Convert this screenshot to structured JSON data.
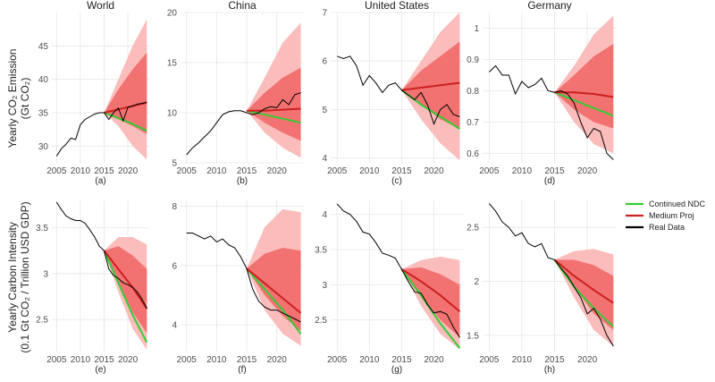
{
  "figure": {
    "row_labels": [
      {
        "line1": "Yearly CO₂ Emission",
        "line2": "(Gt CO₂)"
      },
      {
        "line1": "Yearly Carbon Intensity",
        "line2": "(0.1 Gt CO₂ / Trillion USD GDP)"
      }
    ],
    "legend": [
      {
        "label": "Continued NDC",
        "color": "#33cc33"
      },
      {
        "label": "Medium Proj",
        "color": "#cc1f1f"
      },
      {
        "label": "Real Data",
        "color": "#000000"
      }
    ],
    "colors": {
      "band_outer": "#fbbcbc",
      "band_inner": "#f27272",
      "grid": "#e6e6e6"
    }
  },
  "chart_data": [
    {
      "type": "line",
      "title": "World",
      "panel_label": "(a)",
      "xlim": [
        2004,
        2024.5
      ],
      "ylim": [
        27.5,
        50
      ],
      "x_ticks": [
        2005,
        2010,
        2015,
        2020
      ],
      "y_ticks": [
        30,
        35,
        40,
        45
      ],
      "real_x": [
        2005,
        2006,
        2007,
        2008,
        2009,
        2010,
        2011,
        2012,
        2013,
        2014,
        2015,
        2016,
        2017,
        2018,
        2019,
        2020,
        2021,
        2022,
        2023,
        2024
      ],
      "real_y": [
        28.5,
        29.6,
        30.3,
        31.2,
        31.0,
        33.2,
        34.0,
        34.4,
        34.8,
        35.0,
        35.0,
        34.0,
        35.0,
        35.7,
        33.8,
        35.8,
        36.0,
        36.3,
        36.4,
        36.6
      ],
      "proj_x": [
        2015,
        2018,
        2021,
        2024
      ],
      "medium_y": [
        35.0,
        35.5,
        36.0,
        36.5
      ],
      "ndc_y": [
        35.0,
        34.2,
        33.3,
        32.3
      ],
      "outer_hi": [
        35.0,
        40.0,
        45.0,
        49.0
      ],
      "outer_lo": [
        35.0,
        33.0,
        30.0,
        28.0
      ],
      "inner_hi": [
        35.0,
        38.5,
        41.5,
        44.0
      ],
      "inner_lo": [
        35.0,
        34.0,
        33.0,
        31.8
      ]
    },
    {
      "type": "line",
      "title": "China",
      "panel_label": "(b)",
      "xlim": [
        2004,
        2024.5
      ],
      "ylim": [
        5,
        20
      ],
      "x_ticks": [
        2005,
        2010,
        2015,
        2020
      ],
      "y_ticks": [
        5,
        10,
        15,
        20
      ],
      "real_x": [
        2005,
        2006,
        2007,
        2008,
        2009,
        2010,
        2011,
        2012,
        2013,
        2014,
        2015,
        2016,
        2017,
        2018,
        2019,
        2020,
        2021,
        2022,
        2023,
        2024
      ],
      "real_y": [
        5.8,
        6.5,
        7.0,
        7.6,
        8.2,
        9.0,
        9.8,
        10.1,
        10.2,
        10.2,
        10.0,
        9.8,
        10.0,
        10.4,
        10.6,
        10.5,
        11.3,
        10.8,
        11.8,
        12.0
      ],
      "proj_x": [
        2015,
        2018,
        2021,
        2024
      ],
      "medium_y": [
        10.2,
        10.2,
        10.3,
        10.4
      ],
      "ndc_y": [
        10.2,
        9.8,
        9.4,
        9.0
      ],
      "outer_hi": [
        10.2,
        13.5,
        17.0,
        19.0
      ],
      "outer_lo": [
        10.2,
        8.0,
        6.5,
        5.5
      ],
      "inner_hi": [
        10.2,
        12.0,
        13.5,
        14.5
      ],
      "inner_lo": [
        10.2,
        9.0,
        8.0,
        7.2
      ]
    },
    {
      "type": "line",
      "title": "United States",
      "panel_label": "(c)",
      "xlim": [
        2004,
        2024.5
      ],
      "ylim": [
        3.9,
        7
      ],
      "x_ticks": [
        2005,
        2010,
        2015,
        2020
      ],
      "y_ticks": [
        4,
        5,
        6,
        7
      ],
      "real_x": [
        2005,
        2006,
        2007,
        2008,
        2009,
        2010,
        2011,
        2012,
        2013,
        2014,
        2015,
        2016,
        2017,
        2018,
        2019,
        2020,
        2021,
        2022,
        2023,
        2024
      ],
      "real_y": [
        6.1,
        6.05,
        6.1,
        5.9,
        5.5,
        5.7,
        5.55,
        5.35,
        5.5,
        5.55,
        5.4,
        5.3,
        5.2,
        5.35,
        5.1,
        4.7,
        5.0,
        5.1,
        4.9,
        4.85
      ],
      "proj_x": [
        2015,
        2018,
        2021,
        2024
      ],
      "medium_y": [
        5.4,
        5.45,
        5.5,
        5.55
      ],
      "ndc_y": [
        5.4,
        5.1,
        4.85,
        4.6
      ],
      "outer_hi": [
        5.4,
        6.0,
        6.6,
        7.0
      ],
      "outer_lo": [
        5.4,
        4.8,
        4.3,
        3.95
      ],
      "inner_hi": [
        5.4,
        5.8,
        6.1,
        6.4
      ],
      "inner_lo": [
        5.4,
        5.1,
        4.8,
        4.6
      ]
    },
    {
      "type": "line",
      "title": "Germany",
      "panel_label": "(d)",
      "xlim": [
        2004,
        2024.5
      ],
      "ylim": [
        0.57,
        1.05
      ],
      "x_ticks": [
        2005,
        2010,
        2015,
        2020
      ],
      "y_ticks": [
        0.6,
        0.7,
        0.8,
        0.9,
        1.0
      ],
      "real_x": [
        2005,
        2006,
        2007,
        2008,
        2009,
        2010,
        2011,
        2012,
        2013,
        2014,
        2015,
        2016,
        2017,
        2018,
        2019,
        2020,
        2021,
        2022,
        2023,
        2024
      ],
      "real_y": [
        0.86,
        0.88,
        0.85,
        0.85,
        0.79,
        0.83,
        0.81,
        0.82,
        0.84,
        0.8,
        0.795,
        0.8,
        0.79,
        0.76,
        0.7,
        0.65,
        0.68,
        0.67,
        0.6,
        0.58
      ],
      "proj_x": [
        2015,
        2018,
        2021,
        2024
      ],
      "medium_y": [
        0.795,
        0.795,
        0.79,
        0.78
      ],
      "ndc_y": [
        0.795,
        0.77,
        0.745,
        0.72
      ],
      "outer_hi": [
        0.795,
        0.88,
        0.98,
        1.04
      ],
      "outer_lo": [
        0.795,
        0.7,
        0.63,
        0.6
      ],
      "inner_hi": [
        0.795,
        0.85,
        0.91,
        0.95
      ],
      "inner_lo": [
        0.795,
        0.74,
        0.7,
        0.68
      ]
    },
    {
      "type": "line",
      "title": "",
      "panel_label": "(e)",
      "xlim": [
        2004,
        2024.5
      ],
      "ylim": [
        2.15,
        3.8
      ],
      "x_ticks": [
        2005,
        2010,
        2015,
        2020
      ],
      "y_ticks": [
        2.5,
        3.0,
        3.5
      ],
      "real_x": [
        2005,
        2006,
        2007,
        2008,
        2009,
        2010,
        2011,
        2012,
        2013,
        2014,
        2015,
        2016,
        2017,
        2018,
        2019,
        2020,
        2021,
        2022,
        2023,
        2024
      ],
      "real_y": [
        3.78,
        3.7,
        3.63,
        3.6,
        3.58,
        3.58,
        3.55,
        3.48,
        3.4,
        3.3,
        3.25,
        3.05,
        2.98,
        2.95,
        2.9,
        2.88,
        2.85,
        2.8,
        2.72,
        2.62
      ],
      "proj_x": [
        2015,
        2018,
        2021,
        2024
      ],
      "medium_y": [
        3.25,
        3.05,
        2.85,
        2.62
      ],
      "ndc_y": [
        3.25,
        2.9,
        2.55,
        2.25
      ],
      "outer_hi": [
        3.25,
        3.4,
        3.4,
        3.32
      ],
      "outer_lo": [
        3.25,
        2.8,
        2.4,
        2.17
      ],
      "inner_hi": [
        3.25,
        3.3,
        3.2,
        3.05
      ],
      "inner_lo": [
        3.25,
        2.9,
        2.58,
        2.35
      ]
    },
    {
      "type": "line",
      "title": "",
      "panel_label": "(f)",
      "xlim": [
        2004,
        2024.5
      ],
      "ylim": [
        3.1,
        8.2
      ],
      "x_ticks": [
        2005,
        2010,
        2015,
        2020
      ],
      "y_ticks": [
        4,
        6,
        8
      ],
      "real_x": [
        2005,
        2006,
        2007,
        2008,
        2009,
        2010,
        2011,
        2012,
        2013,
        2014,
        2015,
        2016,
        2017,
        2018,
        2019,
        2020,
        2021,
        2022,
        2023,
        2024
      ],
      "real_y": [
        7.1,
        7.1,
        7.0,
        6.9,
        7.0,
        6.8,
        6.9,
        6.7,
        6.6,
        6.3,
        5.9,
        5.2,
        4.8,
        4.6,
        4.5,
        4.5,
        4.4,
        4.3,
        4.2,
        4.1
      ],
      "proj_x": [
        2015,
        2018,
        2021,
        2024
      ],
      "medium_y": [
        5.9,
        5.4,
        4.9,
        4.4
      ],
      "ndc_y": [
        5.9,
        5.2,
        4.5,
        3.7
      ],
      "outer_hi": [
        5.9,
        7.3,
        7.9,
        7.8
      ],
      "outer_lo": [
        5.9,
        4.5,
        3.7,
        3.3
      ],
      "inner_hi": [
        5.9,
        6.4,
        6.6,
        6.5
      ],
      "inner_lo": [
        5.9,
        5.0,
        4.3,
        3.8
      ]
    },
    {
      "type": "line",
      "title": "",
      "panel_label": "(g)",
      "xlim": [
        2004,
        2024.5
      ],
      "ylim": [
        2.05,
        4.2
      ],
      "x_ticks": [
        2005,
        2010,
        2015,
        2020
      ],
      "y_ticks": [
        2.5,
        3.0,
        3.5,
        4.0
      ],
      "real_x": [
        2005,
        2006,
        2007,
        2008,
        2009,
        2010,
        2011,
        2012,
        2013,
        2014,
        2015,
        2016,
        2017,
        2018,
        2019,
        2020,
        2021,
        2022,
        2023,
        2024
      ],
      "real_y": [
        4.15,
        4.05,
        4.0,
        3.9,
        3.75,
        3.72,
        3.6,
        3.45,
        3.42,
        3.38,
        3.22,
        3.05,
        2.9,
        2.88,
        2.72,
        2.6,
        2.62,
        2.58,
        2.4,
        2.25
      ],
      "proj_x": [
        2015,
        2018,
        2021,
        2024
      ],
      "medium_y": [
        3.22,
        3.05,
        2.85,
        2.62
      ],
      "ndc_y": [
        3.22,
        2.85,
        2.45,
        2.1
      ],
      "outer_hi": [
        3.22,
        3.35,
        3.4,
        3.35
      ],
      "outer_lo": [
        3.22,
        2.7,
        2.3,
        2.08
      ],
      "inner_hi": [
        3.22,
        3.25,
        3.15,
        3.0
      ],
      "inner_lo": [
        3.22,
        2.85,
        2.5,
        2.25
      ]
    },
    {
      "type": "line",
      "title": "",
      "panel_label": "(h)",
      "xlim": [
        2004,
        2024.5
      ],
      "ylim": [
        1.35,
        2.75
      ],
      "x_ticks": [
        2005,
        2010,
        2015,
        2020
      ],
      "y_ticks": [
        1.5,
        2.0,
        2.5
      ],
      "real_x": [
        2005,
        2006,
        2007,
        2008,
        2009,
        2010,
        2011,
        2012,
        2013,
        2014,
        2015,
        2016,
        2017,
        2018,
        2019,
        2020,
        2021,
        2022,
        2023,
        2024
      ],
      "real_y": [
        2.72,
        2.65,
        2.55,
        2.5,
        2.42,
        2.45,
        2.35,
        2.32,
        2.35,
        2.22,
        2.2,
        2.12,
        2.05,
        1.95,
        1.85,
        1.7,
        1.75,
        1.65,
        1.5,
        1.4
      ],
      "proj_x": [
        2015,
        2018,
        2021,
        2024
      ],
      "medium_y": [
        2.2,
        2.05,
        1.92,
        1.8
      ],
      "ndc_y": [
        2.2,
        1.95,
        1.75,
        1.58
      ],
      "outer_hi": [
        2.2,
        2.28,
        2.3,
        2.25
      ],
      "outer_lo": [
        2.2,
        1.85,
        1.55,
        1.4
      ],
      "inner_hi": [
        2.2,
        2.2,
        2.15,
        2.05
      ],
      "inner_lo": [
        2.2,
        1.95,
        1.7,
        1.55
      ]
    }
  ]
}
